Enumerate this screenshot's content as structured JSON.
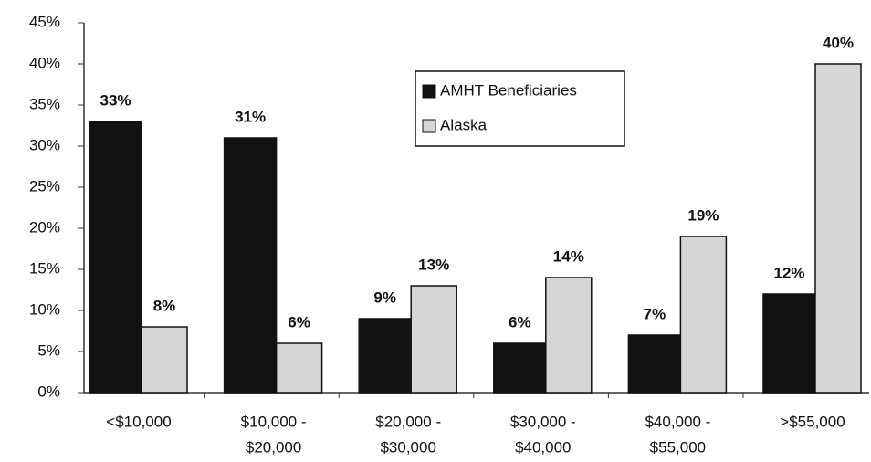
{
  "chart_data": {
    "type": "bar",
    "categories": [
      [
        "<$10,000"
      ],
      [
        "$10,000 -",
        "$20,000"
      ],
      [
        "$20,000 -",
        "$30,000"
      ],
      [
        "$30,000 -",
        "$40,000"
      ],
      [
        "$40,000 -",
        "$55,000"
      ],
      [
        ">$55,000"
      ]
    ],
    "series": [
      {
        "name": "AMHT Beneficiaries",
        "color": "#111111",
        "values": [
          33,
          31,
          9,
          6,
          7,
          12
        ],
        "value_labels": [
          "33%",
          "31%",
          "9%",
          "6%",
          "7%",
          "12%"
        ]
      },
      {
        "name": "Alaska",
        "color": "#d6d6d6",
        "values": [
          8,
          6,
          13,
          14,
          19,
          40
        ],
        "value_labels": [
          "8%",
          "6%",
          "13%",
          "14%",
          "19%",
          "40%"
        ]
      }
    ],
    "ylim": [
      0,
      45
    ],
    "yticks": [
      {
        "value": 0,
        "label": "0%"
      },
      {
        "value": 5,
        "label": "5%"
      },
      {
        "value": 10,
        "label": "10%"
      },
      {
        "value": 15,
        "label": "15%"
      },
      {
        "value": 20,
        "label": "20%"
      },
      {
        "value": 25,
        "label": "25%"
      },
      {
        "value": 30,
        "label": "30%"
      },
      {
        "value": 35,
        "label": "35%"
      },
      {
        "value": 40,
        "label": "40%"
      },
      {
        "value": 45,
        "label": "45%"
      }
    ],
    "legend": "top-center"
  }
}
